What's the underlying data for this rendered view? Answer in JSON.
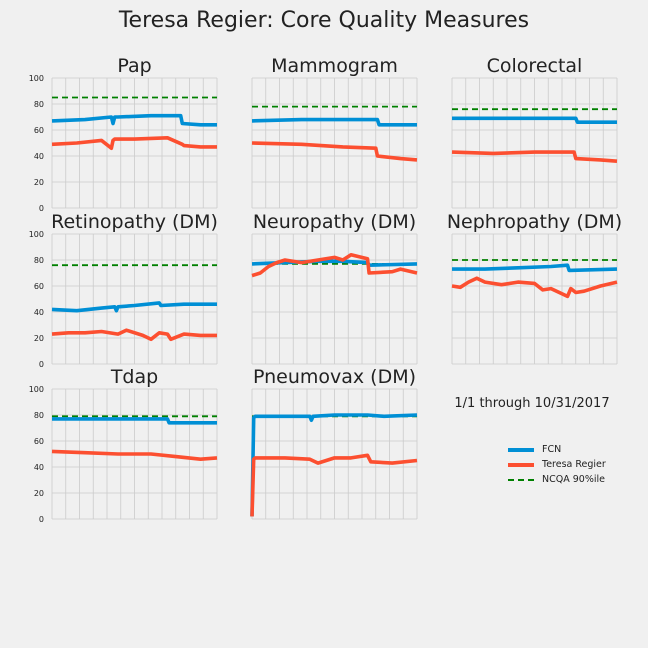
{
  "suptitle": "Teresa Regier: Core Quality Measures",
  "date_range": "1/1 through 10/31/2017",
  "colors": {
    "fcn": "#008fd5",
    "provider": "#fc4f30",
    "ncqa": "#008000",
    "grid": "#cbcbcb",
    "background": "#f0f0f0"
  },
  "legend": [
    {
      "name": "FCN",
      "style": "solid",
      "color": "#008fd5"
    },
    {
      "name": "Teresa Regier",
      "style": "solid",
      "color": "#fc4f30"
    },
    {
      "name": "NCQA 90%ile",
      "style": "dashed",
      "color": "#008000"
    }
  ],
  "chart_data": [
    {
      "type": "line",
      "title": "Pap",
      "xlim": [
        0,
        100
      ],
      "ylim": [
        0,
        100
      ],
      "yticks": [
        0,
        20,
        40,
        60,
        80,
        100
      ],
      "grid": true,
      "ncqa": 85,
      "series": [
        {
          "name": "FCN",
          "x": [
            0,
            20,
            36,
            37,
            38,
            40,
            60,
            78,
            79,
            90,
            100
          ],
          "y": [
            67,
            68,
            70,
            65,
            70,
            70,
            71,
            71,
            65,
            64,
            64
          ]
        },
        {
          "name": "Teresa Regier",
          "x": [
            0,
            15,
            30,
            36,
            37,
            38,
            50,
            70,
            79,
            80,
            90,
            100
          ],
          "y": [
            49,
            50,
            52,
            46,
            52,
            53,
            53,
            54,
            49,
            48,
            47,
            47
          ]
        }
      ]
    },
    {
      "type": "line",
      "title": "Mammogram",
      "xlim": [
        0,
        100
      ],
      "ylim": [
        0,
        100
      ],
      "yticks": [
        0,
        20,
        40,
        60,
        80,
        100
      ],
      "grid": true,
      "ncqa": 78,
      "series": [
        {
          "name": "FCN",
          "x": [
            0,
            30,
            60,
            76,
            77,
            100
          ],
          "y": [
            67,
            68,
            68,
            68,
            64,
            64
          ]
        },
        {
          "name": "Teresa Regier",
          "x": [
            0,
            30,
            55,
            75,
            76,
            90,
            100
          ],
          "y": [
            50,
            49,
            47,
            46,
            40,
            38,
            37
          ]
        }
      ]
    },
    {
      "type": "line",
      "title": "Colorectal",
      "xlim": [
        0,
        100
      ],
      "ylim": [
        0,
        100
      ],
      "yticks": [
        0,
        20,
        40,
        60,
        80,
        100
      ],
      "grid": true,
      "ncqa": 76,
      "series": [
        {
          "name": "FCN",
          "x": [
            0,
            40,
            75,
            76,
            100
          ],
          "y": [
            69,
            69,
            69,
            66,
            66
          ]
        },
        {
          "name": "Teresa Regier",
          "x": [
            0,
            25,
            50,
            74,
            75,
            90,
            100
          ],
          "y": [
            43,
            42,
            43,
            43,
            38,
            37,
            36
          ]
        }
      ]
    },
    {
      "type": "line",
      "title": "Retinopathy (DM)",
      "xlim": [
        0,
        100
      ],
      "ylim": [
        0,
        100
      ],
      "yticks": [
        0,
        20,
        40,
        60,
        80,
        100
      ],
      "grid": true,
      "ncqa": 76,
      "series": [
        {
          "name": "FCN",
          "x": [
            0,
            15,
            30,
            38,
            39,
            40,
            50,
            65,
            66,
            80,
            100
          ],
          "y": [
            42,
            41,
            43,
            44,
            41,
            44,
            45,
            47,
            45,
            46,
            46
          ]
        },
        {
          "name": "Teresa Regier",
          "x": [
            0,
            10,
            20,
            30,
            40,
            45,
            55,
            60,
            65,
            70,
            72,
            80,
            90,
            100
          ],
          "y": [
            23,
            24,
            24,
            25,
            23,
            26,
            22,
            19,
            24,
            23,
            19,
            23,
            22,
            22
          ]
        }
      ]
    },
    {
      "type": "line",
      "title": "Neuropathy (DM)",
      "xlim": [
        0,
        100
      ],
      "ylim": [
        0,
        100
      ],
      "yticks": [
        0,
        20,
        40,
        60,
        80,
        100
      ],
      "grid": true,
      "ncqa": 77,
      "series": [
        {
          "name": "FCN",
          "x": [
            0,
            20,
            40,
            55,
            70,
            71,
            100
          ],
          "y": [
            77,
            78,
            79,
            79,
            78,
            76,
            77
          ]
        },
        {
          "name": "Teresa Regier",
          "x": [
            0,
            5,
            10,
            15,
            20,
            30,
            40,
            50,
            55,
            60,
            70,
            71,
            85,
            90,
            100
          ],
          "y": [
            68,
            70,
            75,
            78,
            80,
            78,
            80,
            82,
            80,
            84,
            81,
            70,
            71,
            73,
            70
          ]
        }
      ]
    },
    {
      "type": "line",
      "title": "Nephropathy (DM)",
      "xlim": [
        0,
        100
      ],
      "ylim": [
        0,
        100
      ],
      "yticks": [
        0,
        20,
        40,
        60,
        80,
        100
      ],
      "grid": true,
      "ncqa": 80,
      "series": [
        {
          "name": "FCN",
          "x": [
            0,
            20,
            40,
            60,
            70,
            71,
            100
          ],
          "y": [
            73,
            73,
            74,
            75,
            76,
            72,
            73
          ]
        },
        {
          "name": "Teresa Regier",
          "x": [
            0,
            5,
            10,
            15,
            20,
            30,
            40,
            50,
            55,
            60,
            65,
            70,
            72,
            75,
            80,
            90,
            100
          ],
          "y": [
            60,
            59,
            63,
            66,
            63,
            61,
            63,
            62,
            57,
            58,
            55,
            52,
            58,
            55,
            56,
            60,
            63
          ]
        }
      ]
    },
    {
      "type": "line",
      "title": "Tdap",
      "xlim": [
        0,
        100
      ],
      "ylim": [
        0,
        100
      ],
      "yticks": [
        0,
        20,
        40,
        60,
        80,
        100
      ],
      "grid": true,
      "ncqa": 79,
      "series": [
        {
          "name": "FCN",
          "x": [
            0,
            40,
            70,
            71,
            100
          ],
          "y": [
            77,
            77,
            77,
            74,
            74
          ]
        },
        {
          "name": "Teresa Regier",
          "x": [
            0,
            20,
            40,
            60,
            75,
            90,
            100
          ],
          "y": [
            52,
            51,
            50,
            50,
            48,
            46,
            47
          ]
        }
      ]
    },
    {
      "type": "line",
      "title": "Pneumovax (DM)",
      "xlim": [
        0,
        100
      ],
      "ylim": [
        0,
        100
      ],
      "yticks": [
        0,
        20,
        40,
        60,
        80,
        100
      ],
      "grid": true,
      "ncqa": 79,
      "series": [
        {
          "name": "FCN",
          "x": [
            0,
            1,
            2,
            20,
            35,
            36,
            37,
            50,
            70,
            80,
            100
          ],
          "y": [
            2,
            78,
            79,
            79,
            79,
            76,
            79,
            80,
            80,
            79,
            80
          ]
        },
        {
          "name": "Teresa Regier",
          "x": [
            0,
            1,
            2,
            20,
            35,
            40,
            50,
            60,
            70,
            72,
            85,
            100
          ],
          "y": [
            2,
            46,
            47,
            47,
            46,
            43,
            47,
            47,
            49,
            44,
            43,
            45
          ]
        }
      ]
    }
  ]
}
